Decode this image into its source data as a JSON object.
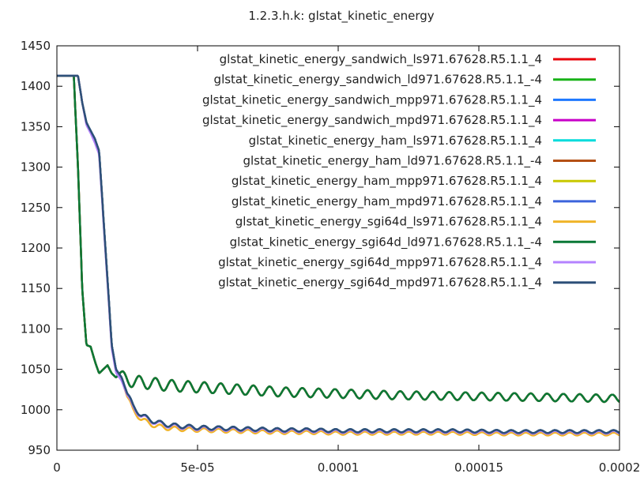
{
  "chart_data": {
    "type": "line",
    "title": "1.2.3.h.k: glstat_kinetic_energy",
    "xlabel": "",
    "ylabel": "",
    "xlim": [
      0,
      0.0002
    ],
    "ylim": [
      950,
      1450
    ],
    "x_ticks": [
      {
        "value": 0,
        "label": "0"
      },
      {
        "value": 5e-05,
        "label": "5e-05"
      },
      {
        "value": 0.0001,
        "label": "0.0001"
      },
      {
        "value": 0.00015,
        "label": "0.00015"
      },
      {
        "value": 0.0002,
        "label": "0.0002"
      }
    ],
    "y_ticks": [
      {
        "value": 950,
        "label": "950"
      },
      {
        "value": 1000,
        "label": "1000"
      },
      {
        "value": 1050,
        "label": "1050"
      },
      {
        "value": 1100,
        "label": "1100"
      },
      {
        "value": 1150,
        "label": "1150"
      },
      {
        "value": 1200,
        "label": "1200"
      },
      {
        "value": 1250,
        "label": "1250"
      },
      {
        "value": 1300,
        "label": "1300"
      },
      {
        "value": 1350,
        "label": "1350"
      },
      {
        "value": 1400,
        "label": "1400"
      },
      {
        "value": 1450,
        "label": "1450"
      }
    ],
    "grid": false,
    "legend_position": "top-right",
    "x": [
      0,
      5e-06,
      6e-06,
      7.5e-06,
      9e-06,
      1.05e-05,
      1.2e-05,
      1.35e-05,
      1.5e-05,
      1.65e-05,
      1.8e-05,
      1.95e-05,
      2.1e-05,
      2.2e-05,
      2.3e-05,
      2.5e-05,
      2.7e-05,
      3e-05,
      3.5e-05,
      4e-05,
      5e-05,
      6e-05,
      7e-05,
      8e-05,
      9e-05,
      0.0001,
      0.00012,
      0.00014,
      0.00016,
      0.00018,
      0.0002
    ],
    "series": [
      {
        "name": "glstat_kinetic_energy_sandwich_ls971.67628.R5.1.1_4",
        "color": "#e8000b",
        "group": "upper",
        "values": [
          1413,
          1413,
          1413,
          1300,
          1150,
          1080,
          1078,
          1060,
          1045,
          1050,
          1055,
          1045,
          1040,
          1043,
          1040,
          1038,
          1035,
          1034,
          1032,
          1030,
          1028,
          1026,
          1024,
          1022,
          1021,
          1020,
          1018,
          1017,
          1016,
          1015,
          1014
        ]
      },
      {
        "name": "glstat_kinetic_energy_sandwich_ld971.67628.R5.1.1_-4",
        "color": "#18b218",
        "group": "upper",
        "values": [
          1413,
          1413,
          1413,
          1300,
          1150,
          1080,
          1078,
          1060,
          1045,
          1050,
          1055,
          1045,
          1040,
          1043,
          1040,
          1038,
          1035,
          1034,
          1032,
          1030,
          1028,
          1026,
          1024,
          1022,
          1021,
          1020,
          1018,
          1017,
          1016,
          1015,
          1014
        ]
      },
      {
        "name": "glstat_kinetic_energy_sandwich_mpp971.67628.R5.1.1_4",
        "color": "#1e78ff",
        "group": "lower",
        "values": [
          1413,
          1413,
          1413,
          1413,
          1380,
          1355,
          1345,
          1335,
          1320,
          1240,
          1160,
          1080,
          1050,
          1045,
          1040,
          1020,
          1005,
          993,
          985,
          981,
          978,
          977,
          976,
          975,
          975,
          974,
          974,
          974,
          973,
          973,
          973
        ]
      },
      {
        "name": "glstat_kinetic_energy_sandwich_mpd971.67628.R5.1.1_4",
        "color": "#c800c8",
        "group": "lower",
        "values": [
          1413,
          1413,
          1413,
          1413,
          1380,
          1355,
          1345,
          1335,
          1320,
          1240,
          1160,
          1080,
          1050,
          1045,
          1040,
          1020,
          1005,
          993,
          985,
          981,
          978,
          977,
          976,
          975,
          975,
          974,
          974,
          974,
          973,
          973,
          973
        ]
      },
      {
        "name": "glstat_kinetic_energy_ham_ls971.67628.R5.1.1_4",
        "color": "#00dcdc",
        "group": "lower",
        "values": [
          1413,
          1413,
          1413,
          1413,
          1380,
          1355,
          1345,
          1335,
          1320,
          1240,
          1160,
          1080,
          1050,
          1045,
          1040,
          1020,
          1005,
          993,
          985,
          981,
          978,
          977,
          976,
          975,
          975,
          974,
          974,
          974,
          973,
          973,
          973
        ]
      },
      {
        "name": "glstat_kinetic_energy_ham_ld971.67628.R5.1.1_-4",
        "color": "#b45014",
        "group": "upper",
        "values": [
          1413,
          1413,
          1413,
          1300,
          1150,
          1080,
          1078,
          1060,
          1045,
          1050,
          1055,
          1045,
          1040,
          1043,
          1040,
          1038,
          1035,
          1034,
          1032,
          1030,
          1028,
          1026,
          1024,
          1022,
          1021,
          1020,
          1018,
          1017,
          1016,
          1015,
          1014
        ]
      },
      {
        "name": "glstat_kinetic_energy_ham_mpp971.67628.R5.1.1_4",
        "color": "#c8c800",
        "group": "lower",
        "values": [
          1413,
          1413,
          1413,
          1413,
          1380,
          1355,
          1345,
          1335,
          1320,
          1240,
          1160,
          1080,
          1050,
          1045,
          1040,
          1020,
          1005,
          993,
          985,
          981,
          978,
          977,
          976,
          975,
          975,
          974,
          974,
          974,
          973,
          973,
          973
        ]
      },
      {
        "name": "glstat_kinetic_energy_ham_mpd971.67628.R5.1.1_4",
        "color": "#3c64dc",
        "group": "lower",
        "values": [
          1413,
          1413,
          1413,
          1413,
          1380,
          1355,
          1345,
          1335,
          1320,
          1240,
          1160,
          1080,
          1050,
          1045,
          1040,
          1020,
          1005,
          993,
          985,
          981,
          978,
          977,
          976,
          975,
          975,
          974,
          974,
          974,
          973,
          973,
          973
        ]
      },
      {
        "name": "glstat_kinetic_energy_sgi64d_ls971.67628.R5.1.1_4",
        "color": "#f0b428",
        "group": "lower",
        "values": [
          1413,
          1413,
          1413,
          1413,
          1380,
          1353,
          1343,
          1332,
          1318,
          1238,
          1158,
          1078,
          1048,
          1043,
          1038,
          1016,
          1000,
          988,
          980,
          977,
          975,
          974,
          973,
          972,
          972,
          971,
          971,
          971,
          970,
          970,
          970
        ]
      },
      {
        "name": "glstat_kinetic_energy_sgi64d_ld971.67628.R5.1.1_-4",
        "color": "#0a7837",
        "group": "upper",
        "values": [
          1413,
          1413,
          1413,
          1300,
          1150,
          1080,
          1078,
          1060,
          1045,
          1050,
          1055,
          1045,
          1040,
          1043,
          1040,
          1038,
          1035,
          1034,
          1032,
          1030,
          1028,
          1026,
          1024,
          1022,
          1021,
          1020,
          1018,
          1017,
          1016,
          1015,
          1014
        ]
      },
      {
        "name": "glstat_kinetic_energy_sgi64d_mpp971.67628.R5.1.1_4",
        "color": "#b482ff",
        "group": "lower",
        "values": [
          1413,
          1413,
          1413,
          1413,
          1380,
          1352,
          1342,
          1330,
          1316,
          1236,
          1156,
          1076,
          1046,
          1041,
          1036,
          1018,
          1003,
          992,
          984,
          980,
          977,
          976,
          975,
          974,
          974,
          973,
          973,
          973,
          972,
          972,
          972
        ]
      },
      {
        "name": "glstat_kinetic_energy_sgi64d_mpd971.67628.R5.1.1_4",
        "color": "#2d5078",
        "group": "lower",
        "values": [
          1413,
          1413,
          1413,
          1413,
          1380,
          1355,
          1345,
          1335,
          1320,
          1240,
          1160,
          1080,
          1050,
          1045,
          1040,
          1020,
          1005,
          993,
          985,
          981,
          978,
          977,
          976,
          975,
          975,
          974,
          974,
          974,
          973,
          973,
          973
        ]
      }
    ]
  }
}
